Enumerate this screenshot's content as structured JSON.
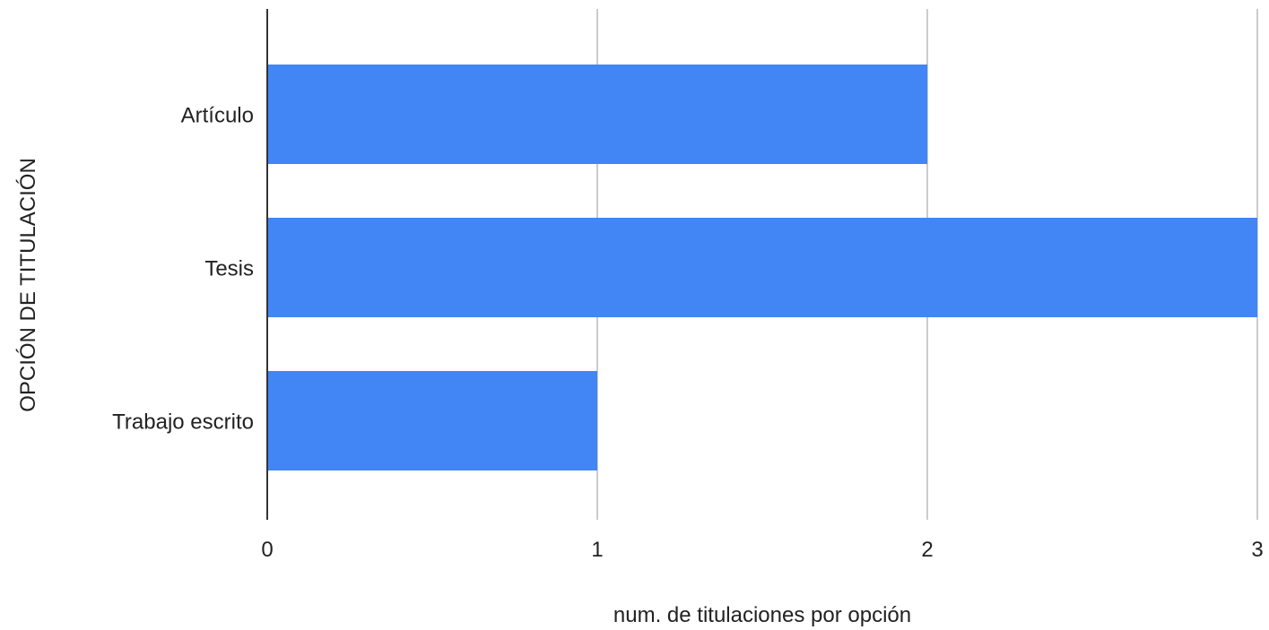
{
  "chart_data": {
    "type": "bar",
    "orientation": "horizontal",
    "categories": [
      "Artículo",
      "Tesis",
      "Trabajo escrito"
    ],
    "values": [
      2,
      3,
      1
    ],
    "xlabel": "num. de titulaciones por opción",
    "ylabel": "OPCIÓN DE TITULACIÓN",
    "xlim": [
      0,
      3
    ],
    "xticks": [
      "0",
      "1",
      "2",
      "3"
    ],
    "grid": true,
    "legend": "none",
    "bar_color": "#4285f4",
    "grid_color": "#cccccc",
    "axis_color": "#333333"
  }
}
